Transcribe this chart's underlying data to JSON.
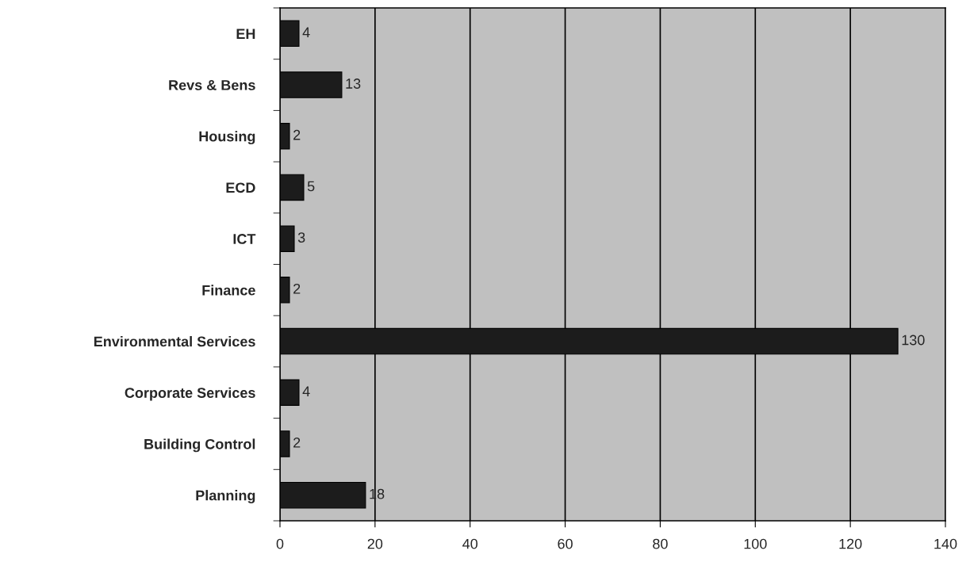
{
  "chart_data": {
    "type": "bar",
    "orientation": "horizontal",
    "categories": [
      "EH",
      "Revs & Bens",
      "Housing",
      "ECD",
      "ICT",
      "Finance",
      "Environmental Services",
      "Corporate Services",
      "Building Control",
      "Planning"
    ],
    "values": [
      4,
      13,
      2,
      5,
      3,
      2,
      130,
      4,
      2,
      18
    ],
    "color": "#1c1c1c",
    "xlim": [
      0,
      140
    ],
    "xticks": [
      0,
      20,
      40,
      60,
      80,
      100,
      120,
      140
    ],
    "grid": "x",
    "data_labels": true,
    "legend": false
  }
}
